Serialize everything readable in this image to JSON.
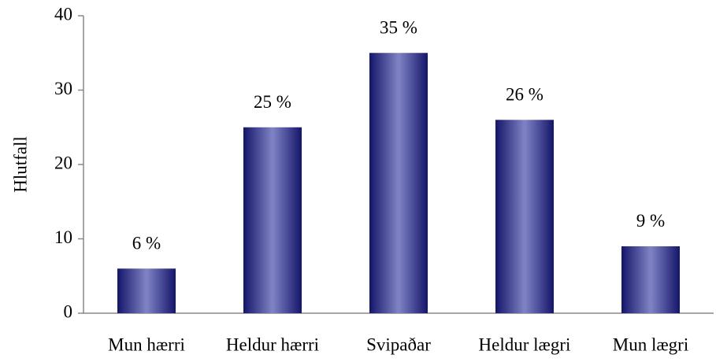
{
  "chart_data": {
    "type": "bar",
    "y_label": "Hlutfall",
    "categories": [
      "Mun hærri",
      "Heldur hærri",
      "Svipaðar",
      "Heldur lægri",
      "Mun lægri"
    ],
    "values": [
      6,
      25,
      35,
      26,
      9
    ],
    "value_labels": [
      "6 %",
      "25 %",
      "35 %",
      "26 %",
      "9 %"
    ],
    "color": "#1e1f78",
    "ylim": [
      0,
      40
    ],
    "yticks": [
      0,
      10,
      20,
      30,
      40
    ],
    "grid": false
  }
}
